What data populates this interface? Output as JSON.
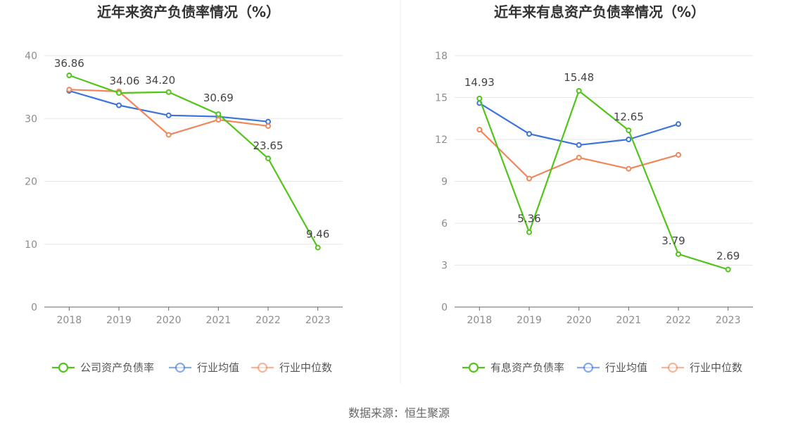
{
  "chart_data": [
    {
      "type": "line",
      "title": "近年来资产负债率情况（%）",
      "categories": [
        "2018",
        "2019",
        "2020",
        "2021",
        "2022",
        "2023"
      ],
      "ylim": [
        0,
        40
      ],
      "yticks": [
        0,
        10,
        20,
        30,
        40
      ],
      "grid": true,
      "legend_position": "bottom",
      "series": [
        {
          "name": "公司资产负债率",
          "color": "#52c41a",
          "values": [
            36.86,
            34.06,
            34.2,
            30.69,
            23.65,
            9.46
          ],
          "labels": [
            "36.86",
            "34.06",
            "34.20",
            "30.69",
            "23.65",
            "9.46"
          ]
        },
        {
          "name": "行业均值",
          "color": "#3d74db",
          "values": [
            34.4,
            32.1,
            30.5,
            30.3,
            29.5,
            null
          ],
          "labels": []
        },
        {
          "name": "行业中位数",
          "color": "#f0875a",
          "values": [
            34.6,
            34.3,
            27.4,
            29.8,
            28.8,
            null
          ],
          "labels": []
        }
      ]
    },
    {
      "type": "line",
      "title": "近年来有息资产负债率情况（%）",
      "categories": [
        "2018",
        "2019",
        "2020",
        "2021",
        "2022",
        "2023"
      ],
      "ylim": [
        0,
        18
      ],
      "yticks": [
        0,
        3,
        6,
        9,
        12,
        15,
        18
      ],
      "grid": true,
      "legend_position": "bottom",
      "series": [
        {
          "name": "有息资产负债率",
          "color": "#52c41a",
          "values": [
            14.93,
            5.36,
            15.48,
            12.65,
            3.79,
            2.69
          ],
          "labels": [
            "14.93",
            "5.36",
            "15.48",
            "12.65",
            "3.79",
            "2.69"
          ]
        },
        {
          "name": "行业均值",
          "color": "#3d74db",
          "values": [
            14.6,
            12.4,
            11.6,
            12.0,
            13.1,
            null
          ],
          "labels": []
        },
        {
          "name": "行业中位数",
          "color": "#f0875a",
          "values": [
            12.7,
            9.2,
            10.7,
            9.9,
            10.9,
            null
          ],
          "labels": []
        }
      ]
    }
  ],
  "footer": {
    "source": "数据来源：恒生聚源"
  },
  "colors": {
    "grid": "#e6e6e6",
    "axis": "#666666",
    "divider": "#eeeeee"
  }
}
